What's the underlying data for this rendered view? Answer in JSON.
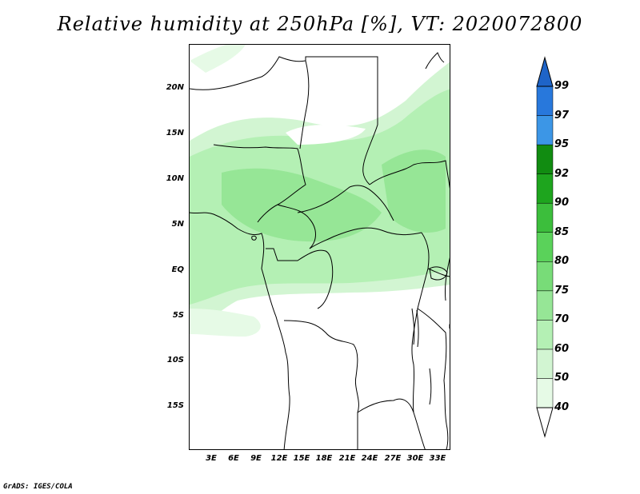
{
  "title": "Relative humidity at 250hPa [%], VT: 2020072800",
  "credit": "GrADS: IGES/COLA",
  "map": {
    "variable": "Relative humidity",
    "level": "250hPa",
    "units": "%",
    "valid_time": "2020072800",
    "lat_labels": [
      "20N",
      "15N",
      "10N",
      "5N",
      "EQ",
      "5S",
      "10S",
      "15S"
    ],
    "lon_labels": [
      "3E",
      "6E",
      "9E",
      "12E",
      "15E",
      "18E",
      "21E",
      "24E",
      "27E",
      "30E",
      "33E"
    ],
    "humid_band": "moist zone approx. 4S–18N across the domain",
    "line_color": "#000000"
  },
  "colorbar": {
    "levels": [
      "40",
      "50",
      "60",
      "70",
      "75",
      "80",
      "85",
      "90",
      "92",
      "95",
      "97",
      "99"
    ],
    "colors": [
      "#ffffff",
      "#e6fae6",
      "#d2f5d2",
      "#b4f0b4",
      "#96e696",
      "#78dc78",
      "#5ad25a",
      "#3cbe3c",
      "#1ea51e",
      "#118c11",
      "#3c96e6",
      "#2878dc",
      "#1e64c8"
    ]
  },
  "chart_data": {
    "type": "heatmap",
    "title": "Relative humidity at 250hPa [%], VT: 2020072800",
    "xlabel": "",
    "ylabel": "",
    "x_ticks": [
      "3E",
      "6E",
      "9E",
      "12E",
      "15E",
      "18E",
      "21E",
      "24E",
      "27E",
      "30E",
      "33E"
    ],
    "y_ticks": [
      "20N",
      "15N",
      "10N",
      "5N",
      "EQ",
      "5S",
      "10S",
      "15S"
    ],
    "xlim": [
      0,
      34
    ],
    "ylim": [
      -20,
      24.5
    ],
    "color_levels": [
      40,
      50,
      60,
      70,
      75,
      80,
      85,
      90,
      92,
      95,
      97,
      99
    ],
    "dominant_range": "50–75 between 4S and 18N; below 40 south of 5S"
  }
}
